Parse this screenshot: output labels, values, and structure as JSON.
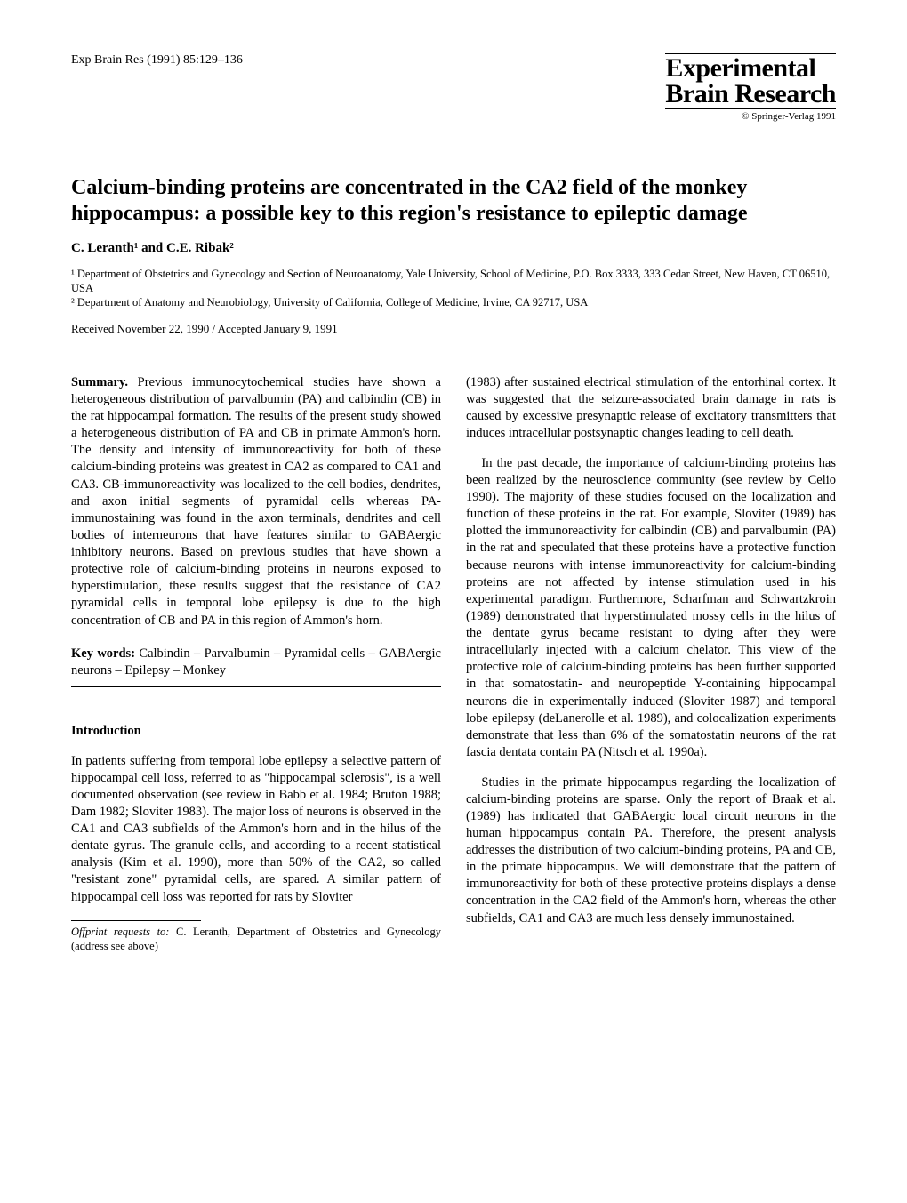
{
  "header": {
    "citation": "Exp Brain Res (1991) 85:129–136",
    "journal_line1": "Experimental",
    "journal_line2": "Brain Research",
    "copyright": "© Springer-Verlag 1991"
  },
  "title": "Calcium-binding proteins are concentrated in the CA2 field of the monkey hippocampus: a possible key to this region's resistance to epileptic damage",
  "authors": "C. Leranth¹ and C.E. Ribak²",
  "affiliations": {
    "a1": "¹ Department of Obstetrics and Gynecology and Section of Neuroanatomy, Yale University, School of Medicine, P.O. Box 3333, 333 Cedar Street, New Haven, CT 06510, USA",
    "a2": "² Department of Anatomy and Neurobiology, University of California, College of Medicine, Irvine, CA 92717, USA"
  },
  "dates": "Received November 22, 1990 / Accepted January 9, 1991",
  "summary": {
    "label": "Summary.",
    "text": " Previous immunocytochemical studies have shown a heterogeneous distribution of parvalbumin (PA) and calbindin (CB) in the rat hippocampal formation. The results of the present study showed a heterogeneous distribution of PA and CB in primate Ammon's horn. The density and intensity of immunoreactivity for both of these calcium-binding proteins was greatest in CA2 as compared to CA1 and CA3. CB-immunoreactivity was localized to the cell bodies, dendrites, and axon initial segments of pyramidal cells whereas PA-immunostaining was found in the axon terminals, dendrites and cell bodies of interneurons that have features similar to GABAergic inhibitory neurons. Based on previous studies that have shown a protective role of calcium-binding proteins in neurons exposed to hyperstimulation, these results suggest that the resistance of CA2 pyramidal cells in temporal lobe epilepsy is due to the high concentration of CB and PA in this region of Ammon's horn."
  },
  "keywords": {
    "label": "Key words:",
    "text": " Calbindin – Parvalbumin – Pyramidal cells – GABAergic neurons – Epilepsy – Monkey"
  },
  "introduction": {
    "heading": "Introduction",
    "p1": "In patients suffering from temporal lobe epilepsy a selective pattern of hippocampal cell loss, referred to as \"hippocampal sclerosis\", is a well documented observation (see review in Babb et al. 1984; Bruton 1988; Dam 1982; Sloviter 1983). The major loss of neurons is observed in the CA1 and CA3 subfields of the Ammon's horn and in the hilus of the dentate gyrus. The granule cells, and according to a recent statistical analysis (Kim et al. 1990), more than 50% of the CA2, so called \"resistant zone\" pyramidal cells, are spared. A similar pattern of hippocampal cell loss was reported for rats by Sloviter",
    "p2": "(1983) after sustained electrical stimulation of the entorhinal cortex. It was suggested that the seizure-associated brain damage in rats is caused by excessive presynaptic release of excitatory transmitters that induces intracellular postsynaptic changes leading to cell death.",
    "p3": "In the past decade, the importance of calcium-binding proteins has been realized by the neuroscience community (see review by Celio 1990). The majority of these studies focused on the localization and function of these proteins in the rat. For example, Sloviter (1989) has plotted the immunoreactivity for calbindin (CB) and parvalbumin (PA) in the rat and speculated that these proteins have a protective function because neurons with intense immunoreactivity for calcium-binding proteins are not affected by intense stimulation used in his experimental paradigm. Furthermore, Scharfman and Schwartzkroin (1989) demonstrated that hyperstimulated mossy cells in the hilus of the dentate gyrus became resistant to dying after they were intracellularly injected with a calcium chelator. This view of the protective role of calcium-binding proteins has been further supported in that somatostatin- and neuropeptide Y-containing hippocampal neurons die in experimentally induced (Sloviter 1987) and temporal lobe epilepsy (deLanerolle et al. 1989), and colocalization experiments demonstrate that less than 6% of the somatostatin neurons of the rat fascia dentata contain PA (Nitsch et al. 1990a).",
    "p4": "Studies in the primate hippocampus regarding the localization of calcium-binding proteins are sparse. Only the report of Braak et al. (1989) has indicated that GABAergic local circuit neurons in the human hippocampus contain PA. Therefore, the present analysis addresses the distribution of two calcium-binding proteins, PA and CB, in the primate hippocampus. We will demonstrate that the pattern of immunoreactivity for both of these protective proteins displays a dense concentration in the CA2 field of the Ammon's horn, whereas the other subfields, CA1 and CA3 are much less densely immunostained."
  },
  "footnote": {
    "label": "Offprint requests to:",
    "text": " C. Leranth, Department of Obstetrics and Gynecology (address see above)"
  }
}
